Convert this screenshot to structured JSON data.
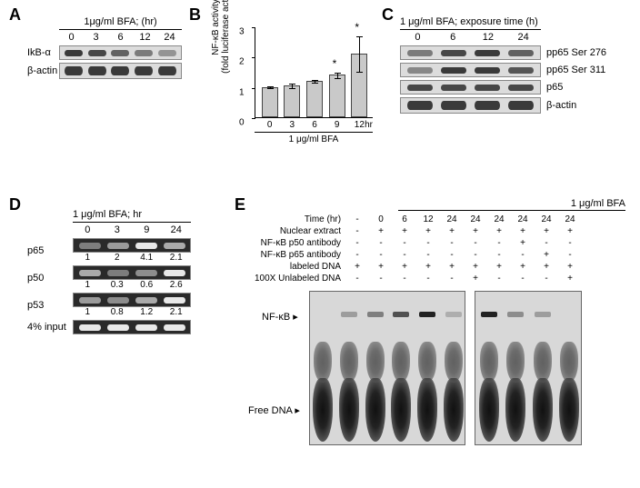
{
  "treatment_label": "1 μg/ml BFA",
  "panels": {
    "A": {
      "header": "1μg/ml BFA; (hr)",
      "times": [
        "0",
        "3",
        "6",
        "12",
        "24"
      ],
      "rows": [
        {
          "label": "IkB-α",
          "intensity": [
            1.0,
            0.9,
            0.7,
            0.5,
            0.3
          ]
        },
        {
          "label": "β-actin",
          "intensity": [
            1.0,
            1.0,
            1.0,
            1.0,
            1.0
          ],
          "heavy": true
        }
      ]
    },
    "B": {
      "ylabel_line1": "NF-κB activity",
      "ylabel_line2": "(fold luciferase activity)",
      "x": [
        "0",
        "3",
        "6",
        "9",
        "12"
      ],
      "xunit": "hr",
      "xlabel": "1 μg/ml BFA",
      "y": [
        1.0,
        1.05,
        1.2,
        1.4,
        2.1
      ],
      "err": [
        0.05,
        0.08,
        0.05,
        0.1,
        0.6
      ],
      "sig": [
        false,
        false,
        false,
        true,
        true
      ],
      "ymax": 3,
      "yticks": [
        0,
        1,
        2,
        3
      ],
      "bar_fill": "#c9c9c9",
      "bar_stroke": "#444444"
    },
    "C": {
      "header": "1 μg/ml BFA; exposure time (h)",
      "times": [
        "0",
        "6",
        "12",
        "24"
      ],
      "rows": [
        {
          "label": "pp65 Ser 276",
          "intensity": [
            0.5,
            0.9,
            1.0,
            0.7
          ]
        },
        {
          "label": "pp65 Ser 311",
          "intensity": [
            0.4,
            1.0,
            1.0,
            0.8
          ]
        },
        {
          "label": "p65",
          "intensity": [
            0.9,
            0.9,
            0.9,
            0.9
          ]
        },
        {
          "label": "β-actin",
          "intensity": [
            1.0,
            1.0,
            1.0,
            1.0
          ],
          "heavy": true
        }
      ]
    },
    "D": {
      "header": "1 μg/ml BFA; hr",
      "times": [
        "0",
        "3",
        "9",
        "24"
      ],
      "rows": [
        {
          "label": "p65",
          "intensity": [
            0.3,
            0.5,
            1.0,
            0.6
          ],
          "quant": [
            "1",
            "2",
            "4.1",
            "2.1"
          ]
        },
        {
          "label": "p50",
          "intensity": [
            0.6,
            0.3,
            0.4,
            1.0
          ],
          "quant": [
            "1",
            "0.3",
            "0.6",
            "2.6"
          ]
        },
        {
          "label": "p53",
          "intensity": [
            0.5,
            0.4,
            0.6,
            1.0
          ],
          "quant": [
            "1",
            "0.8",
            "1.2",
            "2.1"
          ]
        },
        {
          "label": "4% input",
          "intensity": [
            1.0,
            1.0,
            1.0,
            1.0
          ]
        }
      ]
    },
    "E": {
      "header": "1 μg/ml BFA",
      "conditions": {
        "Time (hr)": [
          "-",
          "0",
          "6",
          "12",
          "24",
          "24",
          "24",
          "24",
          "24",
          "24"
        ],
        "Nuclear extract": [
          "-",
          "+",
          "+",
          "+",
          "+",
          "+",
          "+",
          "+",
          "+",
          "+"
        ],
        "NF-κB p50 antibody": [
          "-",
          "-",
          "-",
          "-",
          "-",
          "-",
          "-",
          "+",
          "-",
          "-"
        ],
        "NF-κB p65 antibody": [
          "-",
          "-",
          "-",
          "-",
          "-",
          "-",
          "-",
          "-",
          "+",
          "-"
        ],
        "labeled DNA": [
          "+",
          "+",
          "+",
          "+",
          "+",
          "+",
          "+",
          "+",
          "+",
          "+"
        ],
        "100X Unlabeled DNA": [
          "-",
          "-",
          "-",
          "-",
          "-",
          "+",
          "-",
          "-",
          "-",
          "+"
        ]
      },
      "nfkb_label": "NF-κB",
      "free_label": "Free DNA",
      "nfkb_signal": [
        0,
        0.2,
        0.4,
        0.7,
        1.0,
        0.1,
        1.0,
        0.3,
        0.2,
        0.05
      ],
      "split_after_lane": 6
    }
  }
}
